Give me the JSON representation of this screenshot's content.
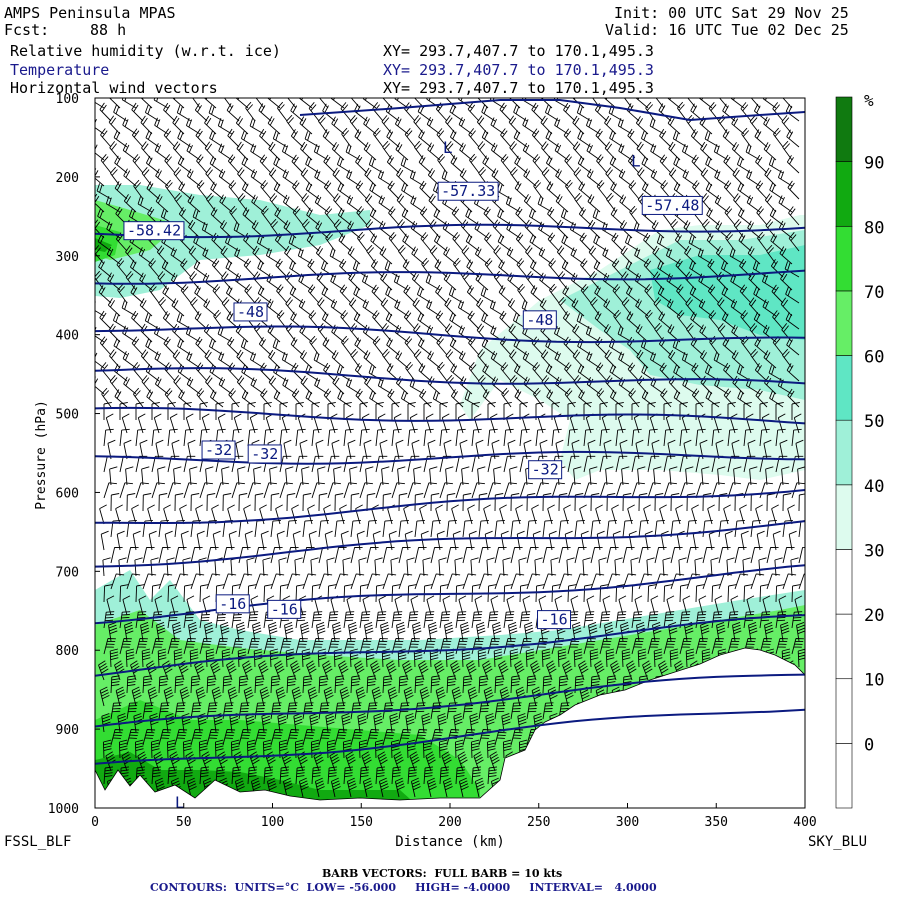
{
  "header": {
    "model": "AMPS Peninsula MPAS",
    "fcst_label": "Fcst:",
    "fcst_value": "88 h",
    "init": "Init: 00 UTC Sat 29 Nov 25",
    "valid": "Valid: 16 UTC Tue 02 Dec 25",
    "fields": [
      {
        "name": "Relative humidity (w.r.t. ice)",
        "xy": "XY= 293.7,407.7 to 170.1,495.3"
      },
      {
        "name": "Temperature",
        "xy": "XY= 293.7,407.7 to 170.1,495.3"
      },
      {
        "name": "Horizontal wind vectors",
        "xy": "XY= 293.7,407.7 to 170.1,495.3"
      }
    ]
  },
  "axes": {
    "xlabel": "Distance (km)",
    "ylabel": "Pressure (hPa)",
    "left_station": "FSSL_BLF",
    "right_station": "SKY_BLU",
    "colorbar_unit": "%"
  },
  "footer": {
    "barb": "BARB VECTORS:  FULL BARB = 10 kts",
    "contours": "CONTOURS:  UNITS=°C  LOW= -56.000     HIGH= -4.0000     INTERVAL=   4.0000"
  },
  "colors": {
    "contour": "#0b1a80",
    "terrain": "#ffffff",
    "rh_scale": [
      "#ffffff",
      "#ffffff",
      "#ffffff",
      "#ffffff",
      "#ddfbee",
      "#9ff0d8",
      "#5fe6c4",
      "#66ee66",
      "#33dd33",
      "#11aa11",
      "#107a10"
    ]
  },
  "chart_data": {
    "type": "cross-section",
    "x": {
      "min": 0,
      "max": 400,
      "ticks": [
        0,
        50,
        100,
        150,
        200,
        250,
        300,
        350,
        400
      ]
    },
    "y": {
      "min": 100,
      "max": 1000,
      "scale": "linear",
      "ticks": [
        100,
        200,
        300,
        400,
        500,
        600,
        700,
        800,
        900,
        1000
      ],
      "inverted": true
    },
    "colorbar": {
      "ticks": [
        0,
        10,
        20,
        30,
        40,
        50,
        60,
        70,
        80,
        90
      ]
    },
    "contour_labels": [
      {
        "text": "-57.33",
        "x": 195,
        "p": 222
      },
      {
        "text": "-57.48",
        "x": 310,
        "p": 240
      },
      {
        "text": "-58.42",
        "x": 18,
        "p": 272
      },
      {
        "text": "-48",
        "x": 80,
        "p": 375
      },
      {
        "text": "-48",
        "x": 243,
        "p": 385
      },
      {
        "text": "-32",
        "x": 62,
        "p": 550
      },
      {
        "text": "-32",
        "x": 88,
        "p": 555
      },
      {
        "text": "-32",
        "x": 246,
        "p": 575
      },
      {
        "text": "-16",
        "x": 70,
        "p": 745
      },
      {
        "text": "-16",
        "x": 99,
        "p": 752
      },
      {
        "text": "-16",
        "x": 251,
        "p": 765
      }
    ],
    "low_markers": [
      {
        "text": "L",
        "x": 196,
        "p": 170
      },
      {
        "text": "L",
        "x": 302,
        "p": 187
      },
      {
        "text": "L",
        "x": 45,
        "p": 1000
      }
    ],
    "isotherm_pressures": {
      "left": [
        272,
        330,
        390,
        445,
        498,
        560,
        640,
        690,
        760,
        830,
        900,
        950
      ],
      "right": [
        262,
        322,
        410,
        465,
        510,
        552,
        593,
        638,
        698,
        760,
        830,
        870
      ]
    }
  }
}
